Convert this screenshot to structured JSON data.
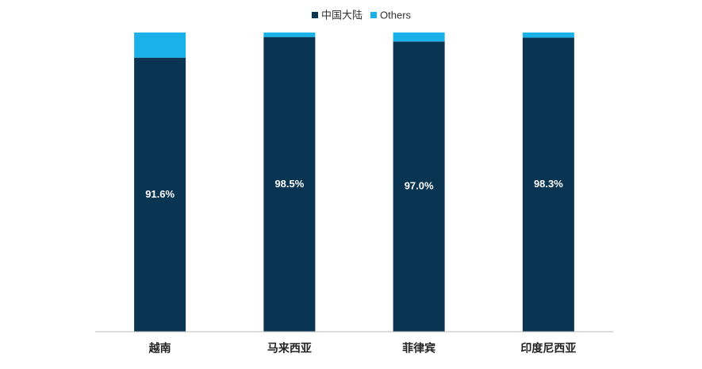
{
  "chart_data": {
    "type": "stacked_bar",
    "categories": [
      "越南",
      "马来西亚",
      "菲律宾",
      "印度尼西亚"
    ],
    "series": [
      {
        "name": "中国大陆",
        "color": "#0a3552",
        "values": [
          91.6,
          98.5,
          97.0,
          98.3
        ],
        "value_labels": [
          "91.6%",
          "98.5%",
          "97.0%",
          "98.3%"
        ]
      },
      {
        "name": "Others",
        "color": "#1ab0e8",
        "values": [
          8.4,
          1.5,
          3.0,
          1.7
        ]
      }
    ],
    "ylim": [
      0,
      100
    ],
    "legend": "top"
  }
}
